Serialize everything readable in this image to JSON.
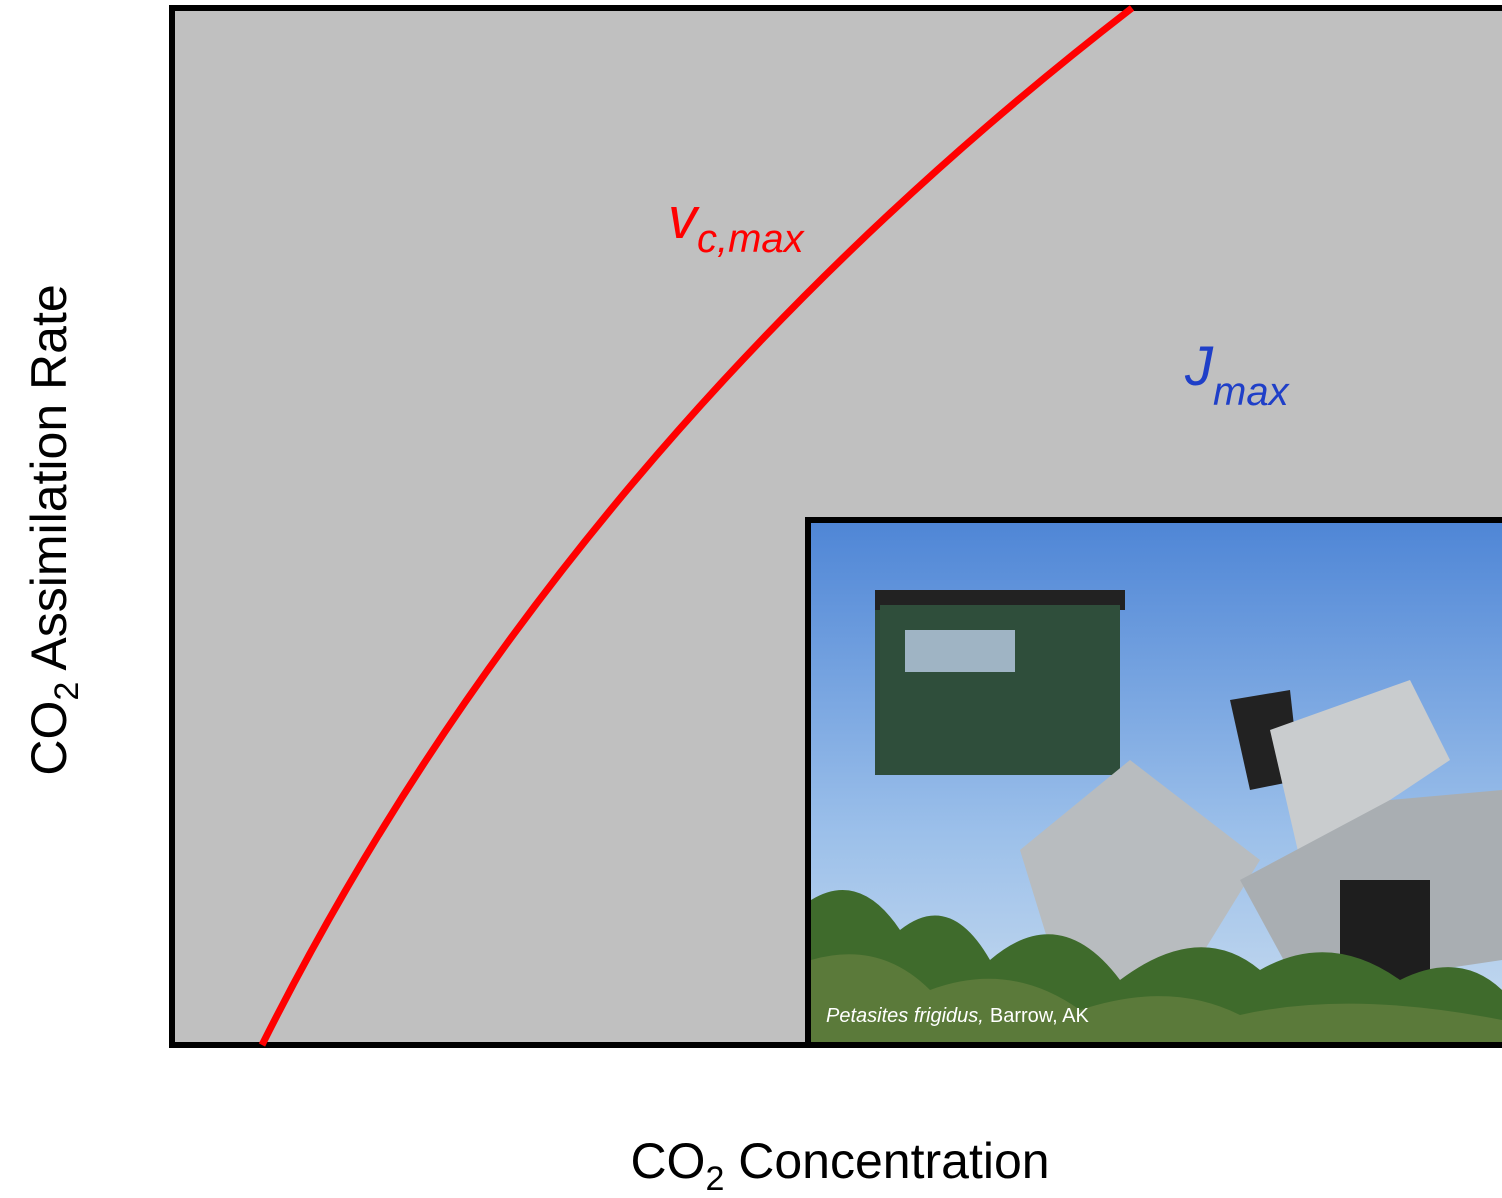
{
  "y_axis_label": {
    "main": "CO",
    "sub": "2",
    "rest": " Assimilation Rate"
  },
  "x_axis_label": {
    "main": "CO",
    "sub": "2",
    "rest": " Concentration"
  },
  "curve_label": {
    "main": "v",
    "sub": "c,max"
  },
  "limit_label": {
    "main": "J",
    "sub": "max"
  },
  "photo_caption": {
    "species": "Petasites frigidus,",
    "location": "Barrow, AK"
  }
}
